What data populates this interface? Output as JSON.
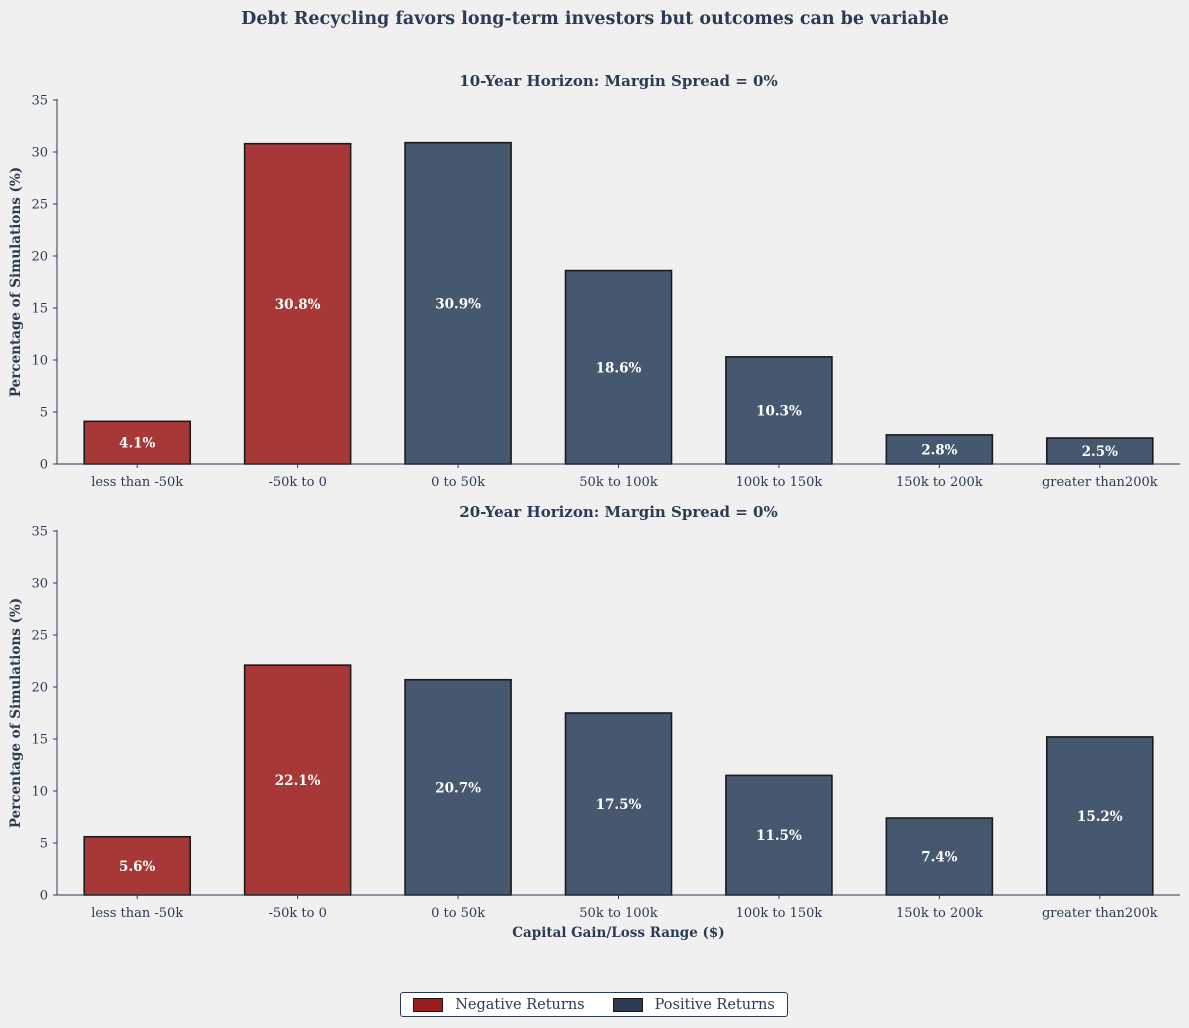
{
  "figure": {
    "suptitle": "Debt Recycling favors long-term investors but outcomes can be variable"
  },
  "colors": {
    "negative": "#a83838",
    "positive": "#46586f",
    "legend_negative": "#9b1c1c",
    "legend_positive": "#2b3a55",
    "axis": "#2b3a55",
    "background": "#f0f0f0"
  },
  "legend": {
    "placement": "bottom-center",
    "items": [
      {
        "label": "Negative Returns"
      },
      {
        "label": "Positive Returns"
      }
    ]
  },
  "chart_data": [
    {
      "type": "bar",
      "title": "10-Year Horizon: Margin Spread = 0%",
      "xlabel": "",
      "ylabel": "Percentage of Simulations (%)",
      "ylim": [
        0,
        35
      ],
      "yticks": [
        0,
        5,
        10,
        15,
        20,
        25,
        30,
        35
      ],
      "grid": false,
      "categories": [
        "less than -50k",
        "-50k to 0",
        "0 to 50k",
        "50k to 100k",
        "100k to 150k",
        "150k to 200k",
        "greater than200k"
      ],
      "values": [
        4.1,
        30.8,
        30.9,
        18.6,
        10.3,
        2.8,
        2.5
      ],
      "labels": [
        "4.1%",
        "30.8%",
        "30.9%",
        "18.6%",
        "10.3%",
        "2.8%",
        "2.5%"
      ],
      "groups": [
        "negative",
        "negative",
        "positive",
        "positive",
        "positive",
        "positive",
        "positive"
      ]
    },
    {
      "type": "bar",
      "title": "20-Year Horizon: Margin Spread = 0%",
      "xlabel": "Capital Gain/Loss Range ($)",
      "ylabel": "Percentage of Simulations (%)",
      "ylim": [
        0,
        35
      ],
      "yticks": [
        0,
        5,
        10,
        15,
        20,
        25,
        30,
        35
      ],
      "grid": false,
      "categories": [
        "less than -50k",
        "-50k to 0",
        "0 to 50k",
        "50k to 100k",
        "100k to 150k",
        "150k to 200k",
        "greater than200k"
      ],
      "values": [
        5.6,
        22.1,
        20.7,
        17.5,
        11.5,
        7.4,
        15.2
      ],
      "labels": [
        "5.6%",
        "22.1%",
        "20.7%",
        "17.5%",
        "11.5%",
        "7.4%",
        "15.2%"
      ],
      "groups": [
        "negative",
        "negative",
        "positive",
        "positive",
        "positive",
        "positive",
        "positive"
      ]
    }
  ]
}
